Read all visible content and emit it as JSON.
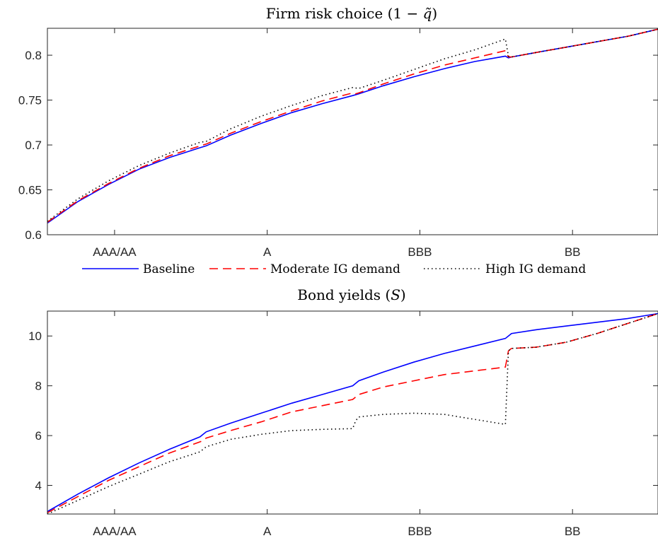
{
  "legend": {
    "entries": [
      {
        "label": "Baseline",
        "color": "#0000ff",
        "style": "solid"
      },
      {
        "label": "Moderate IG demand",
        "color": "#ff0000",
        "style": "dashed"
      },
      {
        "label": "High IG demand",
        "color": "#000000",
        "style": "dotted"
      }
    ]
  },
  "chart_data": [
    {
      "type": "line",
      "title": "Firm risk choice (1 − q̃)",
      "xlabel": "",
      "ylabel": "",
      "xlim": [
        0,
        10
      ],
      "ylim": [
        0.6,
        0.83
      ],
      "yticks": [
        0.6,
        0.65,
        0.7,
        0.75,
        0.8
      ],
      "xticks": [
        {
          "value": 1.1,
          "label": "AAA/AA"
        },
        {
          "value": 3.6,
          "label": "A"
        },
        {
          "value": 6.1,
          "label": "BBB"
        },
        {
          "value": 8.6,
          "label": "BB"
        }
      ],
      "grid": false,
      "legend_placement": "below",
      "series": [
        {
          "name": "Baseline",
          "color": "#0000ff",
          "style": "solid",
          "x": [
            0,
            0.5,
            1,
            1.5,
            2,
            2.5,
            2.6,
            3,
            3.5,
            4,
            4.5,
            5,
            5.1,
            5.5,
            6,
            6.5,
            7,
            7.5,
            7.55,
            7.6,
            8,
            8.5,
            9,
            9.5,
            10
          ],
          "y": [
            0.613,
            0.637,
            0.656,
            0.673,
            0.686,
            0.697,
            0.699,
            0.711,
            0.724,
            0.736,
            0.746,
            0.755,
            0.757,
            0.766,
            0.776,
            0.785,
            0.793,
            0.799,
            0.797,
            0.798,
            0.803,
            0.809,
            0.815,
            0.821,
            0.829
          ]
        },
        {
          "name": "Moderate IG demand",
          "color": "#ff0000",
          "style": "dashed",
          "x": [
            0,
            0.5,
            1,
            1.5,
            2,
            2.5,
            2.55,
            2.6,
            3,
            3.5,
            4,
            4.5,
            5,
            5.05,
            5.1,
            5.5,
            6,
            6.5,
            7,
            7.5,
            7.55,
            7.6,
            8,
            8.5,
            9,
            9.5,
            10
          ],
          "y": [
            0.614,
            0.638,
            0.657,
            0.674,
            0.688,
            0.699,
            0.7,
            0.701,
            0.713,
            0.726,
            0.738,
            0.749,
            0.758,
            0.757,
            0.758,
            0.768,
            0.779,
            0.789,
            0.797,
            0.805,
            0.798,
            0.798,
            0.803,
            0.809,
            0.815,
            0.821,
            0.829
          ]
        },
        {
          "name": "High IG demand",
          "color": "#000000",
          "style": "dotted",
          "x": [
            0,
            0.5,
            1,
            1.5,
            2,
            2.5,
            2.6,
            3,
            3.5,
            4,
            4.5,
            5,
            5.1,
            5.5,
            6,
            6.5,
            7,
            7.5,
            7.55,
            7.6,
            8,
            8.5,
            9,
            9.5,
            10
          ],
          "y": [
            0.615,
            0.64,
            0.66,
            0.677,
            0.691,
            0.703,
            0.704,
            0.718,
            0.732,
            0.744,
            0.755,
            0.764,
            0.763,
            0.772,
            0.784,
            0.796,
            0.806,
            0.818,
            0.799,
            0.798,
            0.803,
            0.809,
            0.815,
            0.821,
            0.829
          ]
        }
      ]
    },
    {
      "type": "line",
      "title": "Bond yields (S)",
      "xlabel": "",
      "ylabel": "",
      "xlim": [
        0,
        10
      ],
      "ylim": [
        2.85,
        11
      ],
      "yticks": [
        4,
        6,
        8,
        10
      ],
      "xticks": [
        {
          "value": 1.1,
          "label": "AAA/AA"
        },
        {
          "value": 3.6,
          "label": "A"
        },
        {
          "value": 6.1,
          "label": "BBB"
        },
        {
          "value": 8.6,
          "label": "BB"
        }
      ],
      "grid": false,
      "series": [
        {
          "name": "Baseline",
          "color": "#0000ff",
          "style": "solid",
          "x": [
            0,
            0.5,
            1,
            1.5,
            2,
            2.5,
            2.55,
            2.6,
            3,
            3.5,
            4,
            4.5,
            5,
            5.05,
            5.1,
            5.5,
            6,
            6.5,
            7,
            7.5,
            7.55,
            7.6,
            8,
            8.5,
            9,
            9.5,
            10
          ],
          "y": [
            2.95,
            3.65,
            4.3,
            4.9,
            5.45,
            5.95,
            6.05,
            6.15,
            6.5,
            6.9,
            7.3,
            7.65,
            8.0,
            8.1,
            8.2,
            8.55,
            8.95,
            9.3,
            9.6,
            9.9,
            10.0,
            10.1,
            10.25,
            10.4,
            10.55,
            10.7,
            10.9
          ]
        },
        {
          "name": "Moderate IG demand",
          "color": "#ff0000",
          "style": "dashed",
          "x": [
            0,
            0.5,
            1,
            1.5,
            2,
            2.5,
            2.55,
            2.6,
            3,
            3.5,
            4,
            4.5,
            5,
            5.05,
            5.1,
            5.5,
            6,
            6.5,
            7,
            7.5,
            7.55,
            7.6,
            8,
            8.5,
            9,
            9.5,
            10
          ],
          "y": [
            2.9,
            3.55,
            4.2,
            4.75,
            5.3,
            5.75,
            5.8,
            5.9,
            6.2,
            6.55,
            6.95,
            7.2,
            7.45,
            7.55,
            7.65,
            7.95,
            8.2,
            8.45,
            8.6,
            8.75,
            9.4,
            9.5,
            9.55,
            9.75,
            10.1,
            10.5,
            10.9
          ]
        },
        {
          "name": "High IG demand",
          "color": "#000000",
          "style": "dotted",
          "x": [
            0,
            0.5,
            1,
            1.5,
            2,
            2.5,
            2.55,
            2.6,
            3,
            3.5,
            4,
            4.5,
            5,
            5.05,
            5.1,
            5.5,
            6,
            6.5,
            7,
            7.5,
            7.55,
            7.6,
            8,
            8.5,
            9,
            9.5,
            10
          ],
          "y": [
            2.85,
            3.4,
            3.95,
            4.45,
            4.95,
            5.35,
            5.45,
            5.55,
            5.85,
            6.05,
            6.2,
            6.25,
            6.28,
            6.6,
            6.75,
            6.85,
            6.9,
            6.85,
            6.65,
            6.45,
            9.4,
            9.5,
            9.55,
            9.75,
            10.1,
            10.5,
            10.9
          ]
        }
      ]
    }
  ]
}
